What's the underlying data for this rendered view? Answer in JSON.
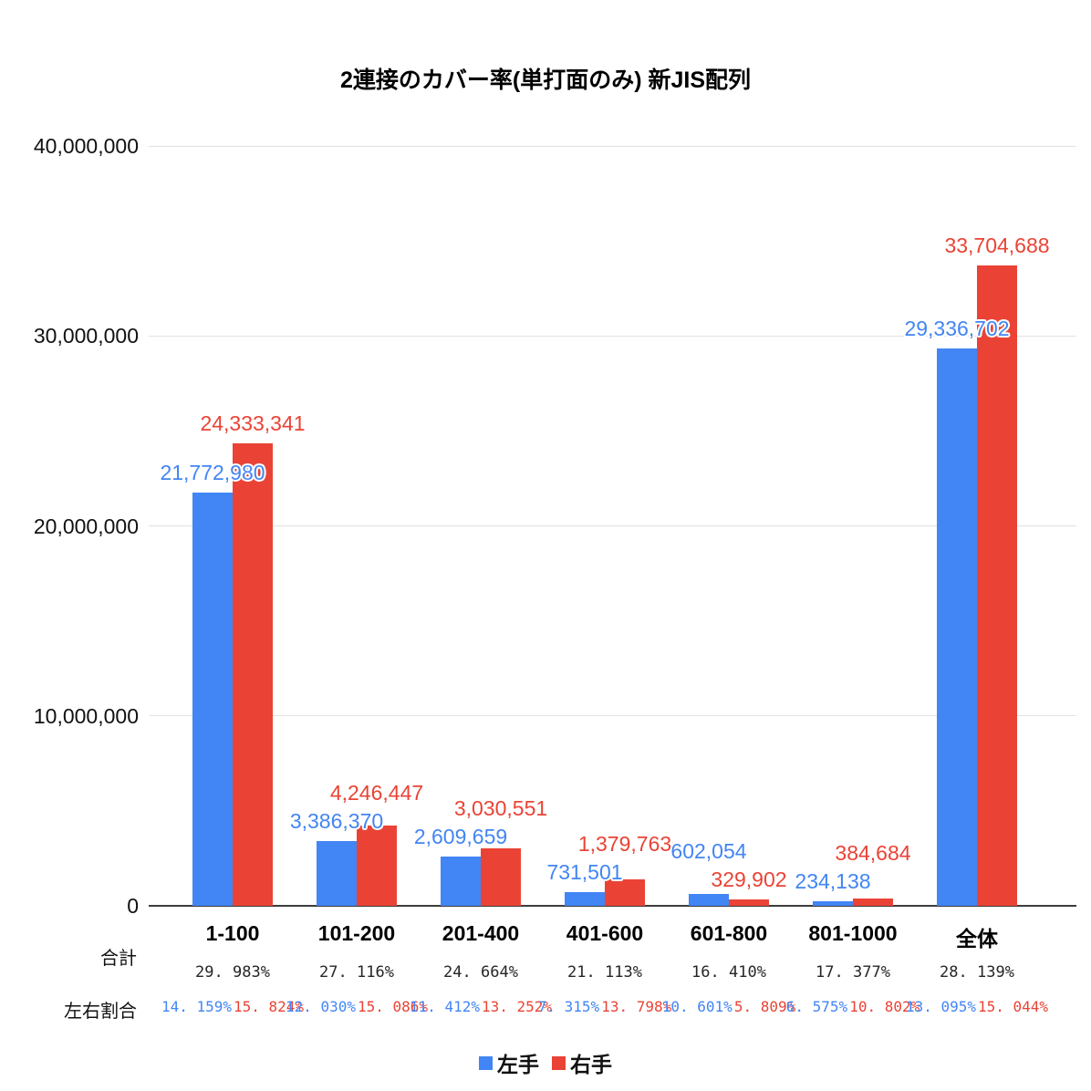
{
  "chart_data": {
    "type": "bar",
    "title": "2連接のカバー率(単打面のみ) 新JIS配列",
    "categories": [
      "1-100",
      "101-200",
      "201-400",
      "401-600",
      "601-800",
      "801-1000",
      "全体"
    ],
    "series": [
      {
        "name": "左手",
        "color": "#4285f4",
        "values": [
          21772980,
          3386370,
          2609659,
          731501,
          602054,
          234138,
          29336702
        ]
      },
      {
        "name": "右手",
        "color": "#ea4335",
        "values": [
          24333341,
          4246447,
          3030551,
          1379763,
          329902,
          384684,
          33704688
        ]
      }
    ],
    "xlabel": "",
    "ylabel": "",
    "ylim": [
      0,
      40000000
    ],
    "yticks": [
      "0",
      "10,000,000",
      "20,000,000",
      "30,000,000",
      "40,000,000"
    ],
    "grid": true,
    "legend_position": "bottom",
    "summary_rows": {
      "total": {
        "label": "合計",
        "values": [
          "29. 983%",
          "27. 116%",
          "24. 664%",
          "21. 113%",
          "16. 410%",
          "17. 377%",
          "28. 139%"
        ]
      },
      "ratio": {
        "label": "左右割合",
        "left": [
          "14. 159%",
          "12. 030%",
          "11. 412%",
          "7. 315%",
          "10. 601%",
          "6. 575%",
          "13. 095%"
        ],
        "right": [
          "15. 824%",
          "15. 086%",
          "13. 252%",
          "13. 798%",
          "5. 809%",
          "10. 802%",
          "15. 044%"
        ]
      }
    }
  }
}
